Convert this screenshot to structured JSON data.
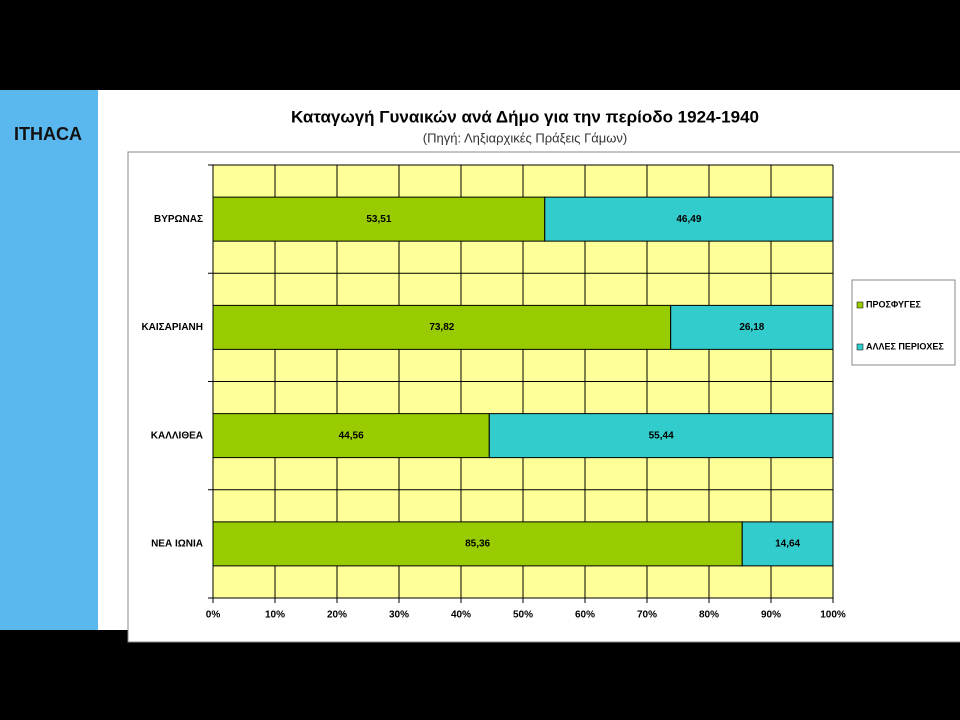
{
  "logo": "ITHACA",
  "chart_data": {
    "type": "stacked-bar-horizontal",
    "title": "Καταγωγή Γυναικών ανά Δήμο για την περίοδο 1924-1940",
    "subtitle": "(Πηγή: Ληξιαρχικές Πράξεις Γάμων)",
    "categories": [
      "ΒΥΡΩΝΑΣ",
      "ΚΑΙΣΑΡΙΑΝΗ",
      "ΚΑΛΛΙΘΕΑ",
      "ΝΕΑ ΙΩΝΙΑ"
    ],
    "series": [
      {
        "name": "ΠΡΟΣΦΥΓΕΣ",
        "color": "#99cc00",
        "values": [
          53.51,
          73.82,
          44.56,
          85.36
        ],
        "value_labels": [
          "53,51",
          "73,82",
          "44,56",
          "85,36"
        ]
      },
      {
        "name": "ΑΛΛΕΣ ΠΕΡΙΟΧΕΣ",
        "color": "#33cccc",
        "values": [
          46.49,
          26.18,
          55.44,
          14.64
        ],
        "value_labels": [
          "46,49",
          "26,18",
          "55,44",
          "14,64"
        ]
      }
    ],
    "xlim": [
      0,
      100
    ],
    "xticks": [
      {
        "value": 0,
        "label": "0%"
      },
      {
        "value": 10,
        "label": "10%"
      },
      {
        "value": 20,
        "label": "20%"
      },
      {
        "value": 30,
        "label": "30%"
      },
      {
        "value": 40,
        "label": "40%"
      },
      {
        "value": 50,
        "label": "50%"
      },
      {
        "value": 60,
        "label": "60%"
      },
      {
        "value": 70,
        "label": "70%"
      },
      {
        "value": 80,
        "label": "80%"
      },
      {
        "value": 90,
        "label": "90%"
      },
      {
        "value": 100,
        "label": "100%"
      }
    ],
    "grid": true,
    "plot_color": "#ffff99",
    "legend": "right"
  }
}
